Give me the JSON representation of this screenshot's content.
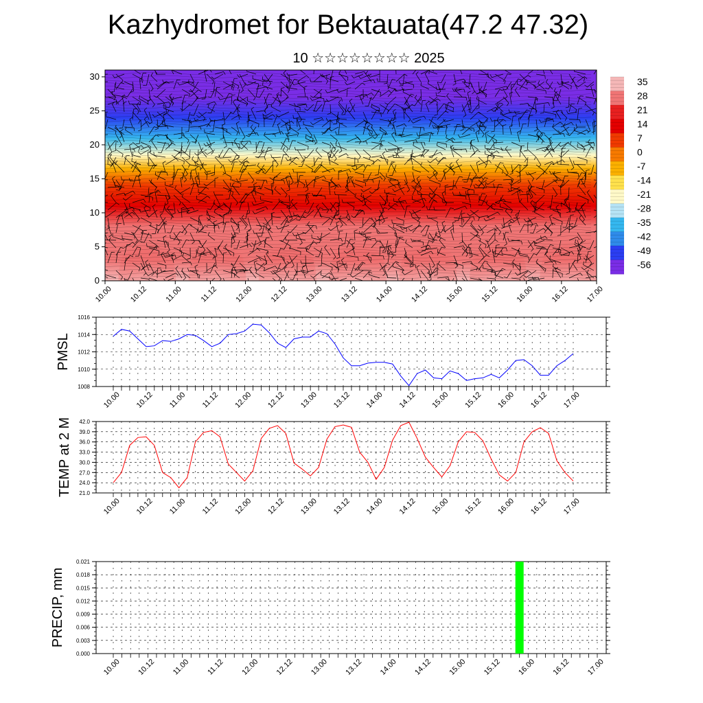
{
  "header": {
    "title": "Kazhydromet for Bektauata(47.2 47.32)",
    "subtitle": "10 ☆☆☆☆☆☆☆☆ 2025"
  },
  "chart_data": [
    {
      "type": "heatmap",
      "title": "Kazhydromet for Bektauata(47.2 47.32)",
      "subtitle": "10 ☆☆☆☆☆☆☆☆ 2025",
      "x_ticks": [
        "10.00",
        "10.12",
        "11.00",
        "11.12",
        "12.00",
        "12.12",
        "13.00",
        "13.12",
        "14.00",
        "14.12",
        "15.00",
        "15.12",
        "16.00",
        "16.12",
        "17.00"
      ],
      "y_ticks": [
        0,
        5,
        10,
        15,
        20,
        25,
        30
      ],
      "ylim": [
        0,
        31
      ],
      "colorbar": {
        "labels": [
          "35",
          "28",
          "21",
          "14",
          "7",
          "0",
          "-7",
          "-14",
          "-21",
          "-28",
          "-35",
          "-42",
          "-49",
          "-56"
        ],
        "colors": [
          "#f5b7b7",
          "#f07575",
          "#e82020",
          "#e40000",
          "#f03a00",
          "#f77a00",
          "#fbb000",
          "#ffe14d",
          "#fff9c8",
          "#b5e3f5",
          "#35b7ef",
          "#2f8bea",
          "#2b3ef2",
          "#7a2de6"
        ]
      },
      "temperature_gradient_by_height": [
        {
          "h": 0,
          "t": 35
        },
        {
          "h": 3,
          "t": 30
        },
        {
          "h": 8,
          "t": 25
        },
        {
          "h": 11,
          "t": 14
        },
        {
          "h": 14,
          "t": 4
        },
        {
          "h": 16.5,
          "t": -7
        },
        {
          "h": 18.5,
          "t": -21
        },
        {
          "h": 21,
          "t": -35
        },
        {
          "h": 24,
          "t": -49
        },
        {
          "h": 27,
          "t": -56
        },
        {
          "h": 31,
          "t": -60
        }
      ],
      "overlay": "wind barbs"
    },
    {
      "type": "line",
      "ylabel": "PMSL",
      "ylim": [
        1008,
        1016
      ],
      "y_ticks": [
        "1016",
        "1014",
        "1012",
        "1010",
        "1008"
      ],
      "x_ticks": [
        "10.00",
        "10.12",
        "11.00",
        "11.12",
        "12.00",
        "12.12",
        "13.00",
        "13.12",
        "14.00",
        "14.12",
        "15.00",
        "15.12",
        "16.00",
        "16.12",
        "17.00"
      ],
      "color": "#0000ff",
      "values": [
        1013.8,
        1014.6,
        1014.4,
        1013.5,
        1012.6,
        1012.7,
        1013.3,
        1013.2,
        1013.5,
        1014.0,
        1013.9,
        1013.3,
        1012.6,
        1013.0,
        1014.0,
        1014.1,
        1014.4,
        1015.2,
        1015.1,
        1014.2,
        1013.0,
        1012.5,
        1013.5,
        1013.7,
        1013.7,
        1014.4,
        1014.1,
        1012.9,
        1011.3,
        1010.4,
        1010.4,
        1010.7,
        1010.8,
        1010.8,
        1010.6,
        1009.2,
        1008.1,
        1009.5,
        1009.9,
        1009.0,
        1008.9,
        1009.8,
        1009.5,
        1008.7,
        1008.9,
        1009.0,
        1009.4,
        1009.0,
        1009.9,
        1011.0,
        1011.1,
        1010.4,
        1009.3,
        1009.3,
        1010.4,
        1011.0,
        1011.8
      ]
    },
    {
      "type": "line",
      "ylabel": "TEMP at 2 M",
      "ylim": [
        21,
        42
      ],
      "y_ticks": [
        "42.0",
        "39.0",
        "36.0",
        "33.0",
        "30.0",
        "27.0",
        "24.0",
        "21.0"
      ],
      "x_ticks": [
        "10.00",
        "10.12",
        "11.00",
        "11.12",
        "12.00",
        "12.12",
        "13.00",
        "13.12",
        "14.00",
        "14.12",
        "15.00",
        "15.12",
        "16.00",
        "16.12",
        "17.00"
      ],
      "color": "#ff0000",
      "values": [
        24.0,
        27.0,
        35.0,
        37.3,
        37.5,
        35.0,
        27.0,
        25.5,
        22.5,
        25.5,
        36.0,
        38.8,
        39.3,
        37.5,
        29.5,
        27.0,
        24.5,
        27.5,
        37.0,
        40.0,
        40.8,
        38.5,
        29.8,
        28.0,
        26.0,
        28.5,
        36.8,
        40.5,
        41.0,
        40.3,
        33.0,
        30.0,
        25.0,
        28.5,
        36.5,
        40.8,
        41.8,
        37.0,
        31.5,
        28.5,
        25.7,
        29.0,
        36.0,
        39.0,
        38.8,
        36.3,
        31.0,
        26.3,
        24.5,
        27.0,
        36.0,
        39.0,
        40.2,
        38.5,
        30.5,
        27.0,
        24.5
      ]
    },
    {
      "type": "bar",
      "ylabel": "PRECIP, mm",
      "ylim": [
        0,
        0.021
      ],
      "y_ticks": [
        "0.021",
        "0.018",
        "0.015",
        "0.012",
        "0.009",
        "0.006",
        "0.003",
        "0.000"
      ],
      "x_ticks": [
        "10.00",
        "10.12",
        "11.00",
        "11.12",
        "12.00",
        "12.12",
        "13.00",
        "13.12",
        "14.00",
        "14.12",
        "15.00",
        "15.12",
        "16.00",
        "16.12",
        "17.00"
      ],
      "color": "#00ff00",
      "bars": [
        {
          "x_step": 47,
          "value": 0.021
        }
      ]
    }
  ]
}
